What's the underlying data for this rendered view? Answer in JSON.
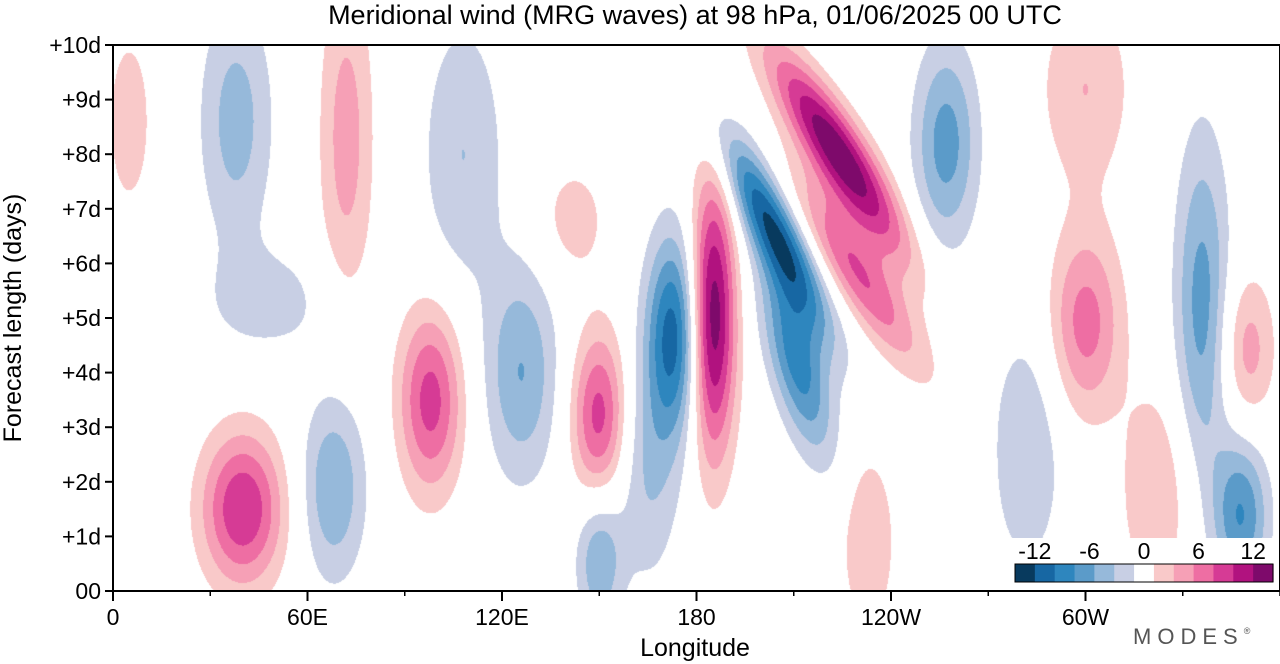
{
  "chart_data": {
    "type": "heatmap",
    "title": "Meridional wind (MRG waves) at  98 hPa,  01/06/2025  00 UTC",
    "xlabel": "Longitude",
    "ylabel": "Forecast length (days)",
    "x_ticks": [
      {
        "lon": 0,
        "label": "0"
      },
      {
        "lon": 60,
        "label": "60E"
      },
      {
        "lon": 120,
        "label": "120E"
      },
      {
        "lon": 180,
        "label": "180"
      },
      {
        "lon": 240,
        "label": "120W"
      },
      {
        "lon": 300,
        "label": "60W"
      }
    ],
    "y_ticks": [
      {
        "day": 0,
        "label": "00"
      },
      {
        "day": 1,
        "label": "+1d"
      },
      {
        "day": 2,
        "label": "+2d"
      },
      {
        "day": 3,
        "label": "+3d"
      },
      {
        "day": 4,
        "label": "+4d"
      },
      {
        "day": 5,
        "label": "+5d"
      },
      {
        "day": 6,
        "label": "+6d"
      },
      {
        "day": 7,
        "label": "+7d"
      },
      {
        "day": 8,
        "label": "+8d"
      },
      {
        "day": 9,
        "label": "+9d"
      },
      {
        "day": 10,
        "label": "+10d"
      }
    ],
    "xlim": [
      0,
      360
    ],
    "ylim": [
      0,
      10
    ],
    "color_levels": [
      -14,
      -12,
      -10,
      -8,
      -6,
      -4,
      -2,
      2,
      4,
      6,
      8,
      10,
      12,
      14
    ],
    "colors": [
      "#083a5e",
      "#1767a3",
      "#2e86be",
      "#5b9bc9",
      "#96b9da",
      "#c8cfe4",
      "#ffffff",
      "#f9c9c9",
      "#f6a0b6",
      "#ee6ea3",
      "#d63b95",
      "#b1127f",
      "#7e0a6b"
    ],
    "colorbar": {
      "labels": [
        "-12",
        "-6",
        "0",
        "6",
        "12"
      ],
      "placement": "bottom-right"
    },
    "features": [
      {
        "lon": 185,
        "day": 5.0,
        "value": 14,
        "sigma_lon": 5,
        "sigma_day": 1.8,
        "tilt": 0
      },
      {
        "lon": 173,
        "day": 4.7,
        "value": -11,
        "sigma_lon": 6,
        "sigma_day": 1.3,
        "tilt": 0
      },
      {
        "lon": 204,
        "day": 6.6,
        "value": -12,
        "sigma_lon": 6,
        "sigma_day": 1.3,
        "tilt": -8
      },
      {
        "lon": 211,
        "day": 4.2,
        "value": -9,
        "sigma_lon": 6,
        "sigma_day": 1.2,
        "tilt": -4
      },
      {
        "lon": 224,
        "day": 8.0,
        "value": 14,
        "sigma_lon": 7,
        "sigma_day": 1.3,
        "tilt": -10
      },
      {
        "lon": 230,
        "day": 5.8,
        "value": 8,
        "sigma_lon": 7,
        "sigma_day": 1.2,
        "tilt": -10
      },
      {
        "lon": 40,
        "day": 1.5,
        "value": 10,
        "sigma_lon": 9,
        "sigma_day": 1.0,
        "tilt": 0
      },
      {
        "lon": 98,
        "day": 3.5,
        "value": 9,
        "sigma_lon": 7,
        "sigma_day": 1.2,
        "tilt": 0
      },
      {
        "lon": 150,
        "day": 3.2,
        "value": 9,
        "sigma_lon": 6,
        "sigma_day": 1.1,
        "tilt": 0
      },
      {
        "lon": 126,
        "day": 4.0,
        "value": -6,
        "sigma_lon": 8,
        "sigma_day": 1.4,
        "tilt": 0
      },
      {
        "lon": 68,
        "day": 1.9,
        "value": -6,
        "sigma_lon": 7,
        "sigma_day": 1.2,
        "tilt": 0
      },
      {
        "lon": 38,
        "day": 8.6,
        "value": -5,
        "sigma_lon": 8,
        "sigma_day": 1.6,
        "tilt": 0
      },
      {
        "lon": 72,
        "day": 8.3,
        "value": 5,
        "sigma_lon": 6,
        "sigma_day": 2.2,
        "tilt": 0
      },
      {
        "lon": 48,
        "day": 5.3,
        "value": -3,
        "sigma_lon": 14,
        "sigma_day": 0.7,
        "tilt": 0
      },
      {
        "lon": 108,
        "day": 8.0,
        "value": -4,
        "sigma_lon": 9,
        "sigma_day": 1.8,
        "tilt": 0
      },
      {
        "lon": 142,
        "day": 6.8,
        "value": 3,
        "sigma_lon": 8,
        "sigma_day": 0.8,
        "tilt": 0
      },
      {
        "lon": 165,
        "day": 2.2,
        "value": -4,
        "sigma_lon": 7,
        "sigma_day": 1.5,
        "tilt": 0
      },
      {
        "lon": 150,
        "day": 0.6,
        "value": -6,
        "sigma_lon": 5,
        "sigma_day": 0.9,
        "tilt": 0
      },
      {
        "lon": 233,
        "day": 0.9,
        "value": 4,
        "sigma_lon": 6,
        "sigma_day": 1.2,
        "tilt": 0
      },
      {
        "lon": 257,
        "day": 8.2,
        "value": -7,
        "sigma_lon": 7,
        "sigma_day": 1.3,
        "tilt": 0
      },
      {
        "lon": 282,
        "day": 2.6,
        "value": -4,
        "sigma_lon": 8,
        "sigma_day": 1.6,
        "tilt": 0
      },
      {
        "lon": 300,
        "day": 4.9,
        "value": 7,
        "sigma_lon": 8,
        "sigma_day": 1.2,
        "tilt": 0
      },
      {
        "lon": 300,
        "day": 9.2,
        "value": 4,
        "sigma_lon": 10,
        "sigma_day": 1.3,
        "tilt": 0
      },
      {
        "lon": 336,
        "day": 5.2,
        "value": -7,
        "sigma_lon": 6,
        "sigma_day": 2.2,
        "tilt": 0
      },
      {
        "lon": 348,
        "day": 1.4,
        "value": -8,
        "sigma_lon": 6,
        "sigma_day": 1.0,
        "tilt": 0
      },
      {
        "lon": 350,
        "day": 4.4,
        "value": 5,
        "sigma_lon": 6,
        "sigma_day": 1.0,
        "tilt": 0
      },
      {
        "lon": 322,
        "day": 1.8,
        "value": 4,
        "sigma_lon": 8,
        "sigma_day": 1.4,
        "tilt": 0
      },
      {
        "lon": 5,
        "day": 8.6,
        "value": 3,
        "sigma_lon": 6,
        "sigma_day": 1.4,
        "tilt": 0
      }
    ]
  },
  "brand_text": "MODES",
  "brand_mark": "®"
}
